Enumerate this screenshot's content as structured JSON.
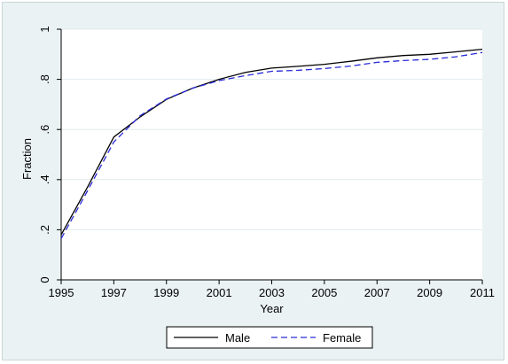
{
  "chart_data": {
    "type": "line",
    "xlabel": "Year",
    "ylabel": "Fraction",
    "xlim": [
      1995,
      2011
    ],
    "ylim": [
      0,
      1
    ],
    "xticks": [
      1995,
      1997,
      1999,
      2001,
      2003,
      2005,
      2007,
      2009,
      2011
    ],
    "xtick_labels": [
      "1995",
      "1997",
      "1999",
      "2001",
      "2003",
      "2005",
      "2007",
      "2009",
      "2011"
    ],
    "yticks": [
      0,
      0.2,
      0.4,
      0.6,
      0.8,
      1
    ],
    "ytick_labels": [
      "0",
      ".2",
      ".4",
      ".6",
      ".8",
      "1"
    ],
    "grid": true,
    "legend_position": "bottom",
    "x": [
      1995,
      1996,
      1997,
      1998,
      1999,
      2000,
      2001,
      2002,
      2003,
      2004,
      2005,
      2006,
      2007,
      2008,
      2009,
      2010,
      2011
    ],
    "series": [
      {
        "name": "Male",
        "color": "#000000",
        "style": "solid",
        "values": [
          0.18,
          0.37,
          0.57,
          0.65,
          0.72,
          0.765,
          0.8,
          0.828,
          0.845,
          0.852,
          0.86,
          0.872,
          0.886,
          0.895,
          0.9,
          0.91,
          0.92
        ]
      },
      {
        "name": "Female",
        "color": "#2a2ad8",
        "style": "dashed",
        "values": [
          0.165,
          0.355,
          0.55,
          0.655,
          0.722,
          0.765,
          0.795,
          0.815,
          0.832,
          0.836,
          0.843,
          0.853,
          0.868,
          0.875,
          0.88,
          0.89,
          0.907
        ]
      }
    ]
  }
}
